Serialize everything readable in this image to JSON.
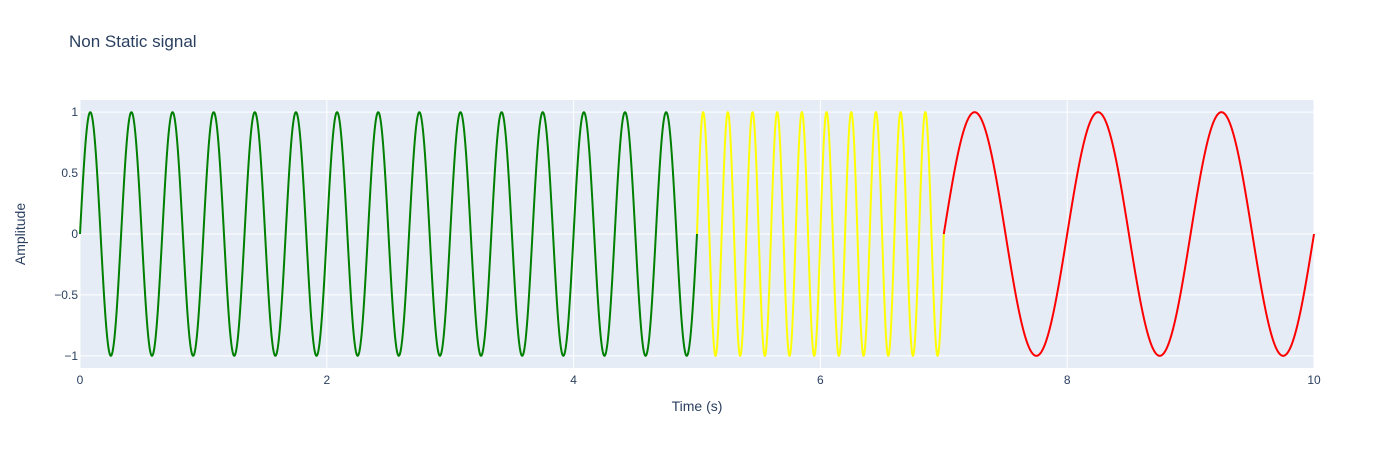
{
  "chart_data": {
    "type": "line",
    "title": "Non Static signal",
    "xlabel": "Time (s)",
    "ylabel": "Amplitude",
    "xlim": [
      0,
      10
    ],
    "ylim": [
      -1.1,
      1.1
    ],
    "xticks": [
      0,
      2,
      4,
      6,
      8,
      10
    ],
    "xtick_labels": [
      "0",
      "2",
      "4",
      "6",
      "8",
      "10"
    ],
    "yticks": [
      -1,
      -0.5,
      0,
      0.5,
      1
    ],
    "ytick_labels": [
      "−1",
      "−0.5",
      "0",
      "0.5",
      "1"
    ],
    "grid": true,
    "plot_background": "#e5ecf6",
    "grid_color": "#ffffff",
    "text_color": "#2a3f5f",
    "series": [
      {
        "color": "#008000",
        "function": "sin",
        "amplitude": 1,
        "frequency_hz": 3,
        "x_start": 0,
        "x_end": 5
      },
      {
        "color": "#ffff00",
        "function": "sin",
        "amplitude": 1,
        "frequency_hz": 5,
        "x_start": 5,
        "x_end": 7
      },
      {
        "color": "#ff0000",
        "function": "sin",
        "amplitude": 1,
        "frequency_hz": 1,
        "x_start": 7,
        "x_end": 10
      }
    ]
  }
}
